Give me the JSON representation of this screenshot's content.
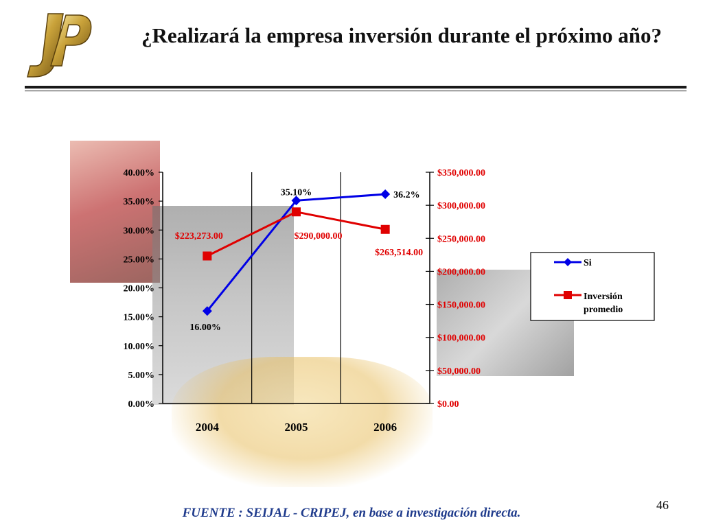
{
  "slide": {
    "title": "¿Realizará la empresa inversión durante el próximo año?",
    "source": "FUENTE :  SEIJAL - CRIPEJ,  en base a investigación directa.",
    "page_number": "46"
  },
  "colors": {
    "blue": "#0000e6",
    "red": "#e00000",
    "source": "#1f3b8c"
  },
  "chart_data": {
    "type": "line",
    "categories": [
      "2004",
      "2005",
      "2006"
    ],
    "y_left": {
      "range": [
        0,
        40
      ],
      "ticks": [
        0,
        5,
        10,
        15,
        20,
        25,
        30,
        35,
        40
      ],
      "tick_labels": [
        "0.00%",
        "5.00%",
        "10.00%",
        "15.00%",
        "20.00%",
        "25.00%",
        "30.00%",
        "35.00%",
        "40.00%"
      ]
    },
    "y_right": {
      "range": [
        0,
        350000
      ],
      "ticks": [
        0,
        50000,
        100000,
        150000,
        200000,
        250000,
        300000,
        350000
      ],
      "tick_labels": [
        "$0.00",
        "$50,000.00",
        "$100,000.00",
        "$150,000.00",
        "$200,000.00",
        "$250,000.00",
        "$300,000.00",
        "$350,000.00"
      ]
    },
    "grid": "vertical",
    "legend_position": "right",
    "series": [
      {
        "name": "Si",
        "axis": "left",
        "color": "#0000e6",
        "marker": "diamond",
        "values": [
          16.0,
          35.1,
          36.2
        ],
        "data_labels": [
          "16.00%",
          "35.10%",
          "36.2%"
        ]
      },
      {
        "name": "Inversión promedio",
        "axis": "right",
        "color": "#e00000",
        "marker": "square",
        "values": [
          223273,
          290000,
          263514
        ],
        "data_labels": [
          "$223,273.00",
          "$290,000.00",
          "$263,514.00"
        ]
      }
    ]
  }
}
